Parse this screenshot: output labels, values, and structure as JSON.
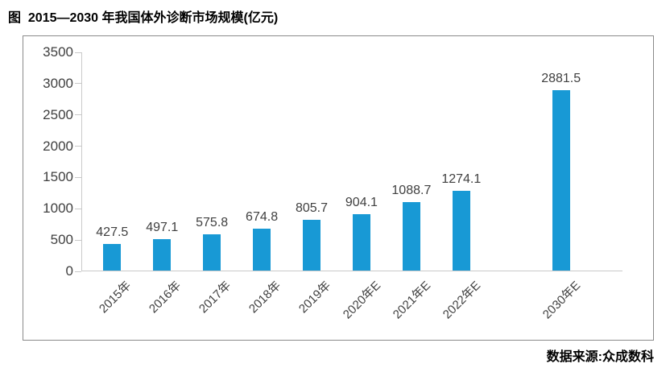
{
  "page": {
    "title": "图  2015—2030 年我国体外诊断市场规模(亿元)",
    "source": "数据来源:众成数科"
  },
  "chart_data": {
    "type": "bar",
    "title": "图  2015—2030 年我国体外诊断市场规模(亿元)",
    "categories": [
      "2015年",
      "2016年",
      "2017年",
      "2018年",
      "2019年",
      "2020年E",
      "2021年E",
      "2022年E",
      "2030年E"
    ],
    "values": [
      427.5,
      497.1,
      575.8,
      674.8,
      805.7,
      904.1,
      1088.7,
      1274.1,
      2881.5
    ],
    "value_labels": [
      "427.5",
      "497.1",
      "575.8",
      "674.8",
      "805.7",
      "904.1",
      "1088.7",
      "1274.1",
      "2881.5"
    ],
    "slots": [
      0,
      1,
      2,
      3,
      4,
      5,
      6,
      7,
      9
    ],
    "ylim": [
      0,
      3500
    ],
    "yticks": [
      0,
      500,
      1000,
      1500,
      2000,
      2500,
      3000,
      3500
    ],
    "bar_color": "#1899d5",
    "axis_color": "#c9c9c9",
    "grid": false,
    "legend": false,
    "xlabel": "",
    "ylabel": "",
    "source": "数据来源:众成数科"
  }
}
